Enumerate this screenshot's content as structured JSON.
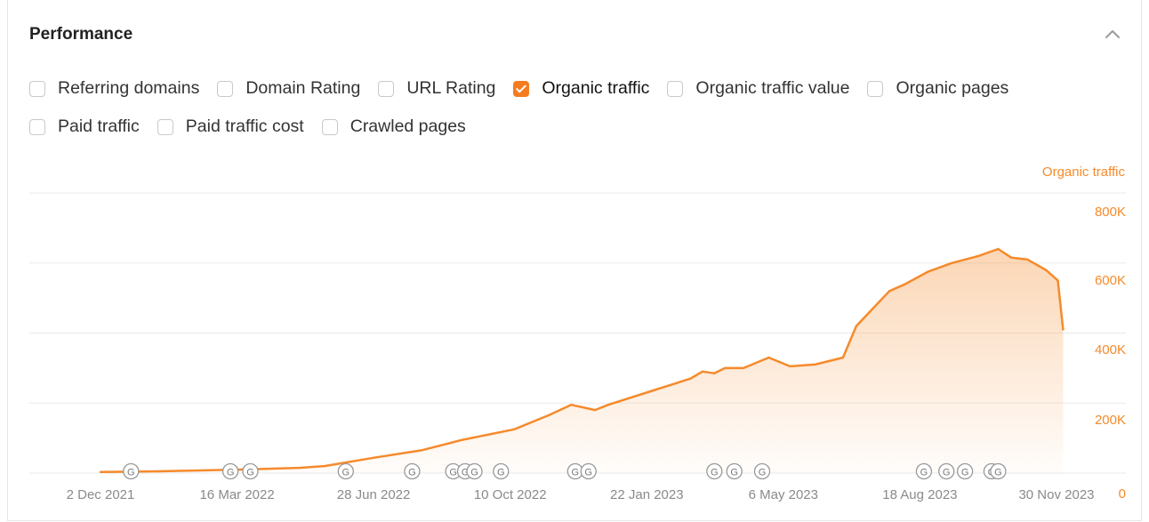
{
  "panel": {
    "title": "Performance"
  },
  "metrics": {
    "row1": [
      {
        "label": "Referring domains",
        "checked": false
      },
      {
        "label": "Domain Rating",
        "checked": false
      },
      {
        "label": "URL Rating",
        "checked": false
      },
      {
        "label": "Organic traffic",
        "checked": true
      },
      {
        "label": "Organic traffic value",
        "checked": false
      },
      {
        "label": "Organic pages",
        "checked": false
      }
    ],
    "row2": [
      {
        "label": "Paid traffic",
        "checked": false
      },
      {
        "label": "Paid traffic cost",
        "checked": false
      },
      {
        "label": "Crawled pages",
        "checked": false
      }
    ]
  },
  "colors": {
    "accent": "#f58a2b",
    "grid": "#e9e9e9",
    "axis_text": "#8a8a8a",
    "marker": "#9a9a9a"
  },
  "chart_data": {
    "type": "area",
    "series": [
      {
        "name": "Organic traffic",
        "x": [
          "2021-12-02",
          "2022-01-15",
          "2022-03-16",
          "2022-05-01",
          "2022-05-20",
          "2022-06-28",
          "2022-08-01",
          "2022-09-01",
          "2022-10-10",
          "2022-11-05",
          "2022-11-22",
          "2022-12-10",
          "2022-12-20",
          "2023-01-22",
          "2023-02-20",
          "2023-03-01",
          "2023-03-10",
          "2023-03-18",
          "2023-04-01",
          "2023-04-20",
          "2023-05-06",
          "2023-05-25",
          "2023-06-15",
          "2023-06-25",
          "2023-07-05",
          "2023-07-20",
          "2023-08-01",
          "2023-08-18",
          "2023-09-05",
          "2023-09-25",
          "2023-10-10",
          "2023-10-20",
          "2023-11-01",
          "2023-11-15",
          "2023-11-24",
          "2023-11-28"
        ],
        "values": [
          3000,
          5000,
          10000,
          15000,
          20000,
          45000,
          65000,
          95000,
          125000,
          165000,
          195000,
          180000,
          195000,
          235000,
          270000,
          290000,
          285000,
          300000,
          300000,
          330000,
          305000,
          310000,
          330000,
          420000,
          460000,
          520000,
          540000,
          575000,
          600000,
          620000,
          640000,
          615000,
          610000,
          580000,
          550000,
          410000
        ]
      }
    ],
    "x_ticks": [
      "2 Dec 2021",
      "16 Mar 2022",
      "28 Jun 2022",
      "10 Oct 2022",
      "22 Jan 2023",
      "6 May 2023",
      "18 Aug 2023",
      "30 Nov 2023"
    ],
    "y_ticks": [
      "0",
      "200K",
      "400K",
      "600K",
      "800K"
    ],
    "y_axis_title": "Organic traffic",
    "ylim": [
      0,
      800000
    ],
    "grid": true,
    "update_markers": [
      "2021-12-25",
      "2022-03-10",
      "2022-03-25",
      "2022-06-05",
      "2022-07-25",
      "2022-08-25",
      "2022-09-03",
      "2022-09-10",
      "2022-09-30",
      "2022-11-25",
      "2022-12-05",
      "2023-03-10",
      "2023-03-25",
      "2023-04-15",
      "2023-08-15",
      "2023-09-01",
      "2023-09-15",
      "2023-10-05",
      "2023-10-10"
    ],
    "marker_label": "G"
  }
}
